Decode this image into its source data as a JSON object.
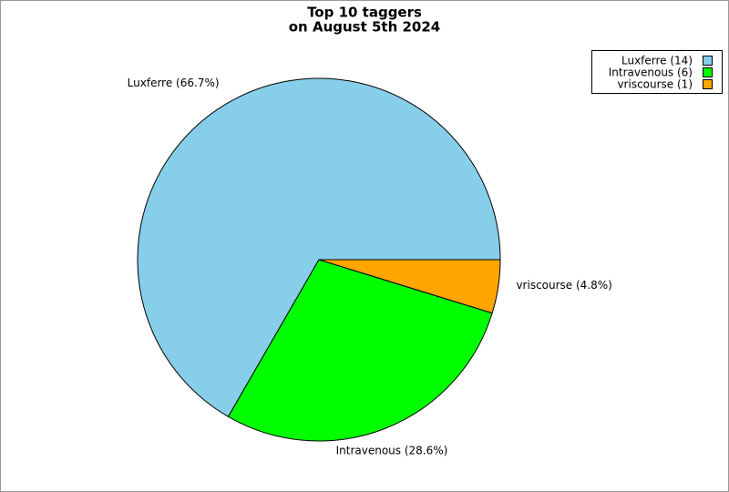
{
  "chart_data": {
    "type": "pie",
    "title": [
      "Top 10 taggers",
      "on August 5th 2024"
    ],
    "categories": [
      "Luxferre",
      "Intravenous",
      "vriscourse"
    ],
    "values": [
      14,
      6,
      1
    ],
    "value_labels": [
      "Luxferre (66.7%)",
      "Intravenous (28.6%)",
      "vriscourse (4.8%)"
    ],
    "legend_labels": [
      "Luxferre (14)",
      "Intravenous (6)",
      "vriscourse (1)"
    ],
    "colors": [
      "#87ceeb",
      "#00ff00",
      "#ffa500"
    ],
    "legend": "top-right"
  }
}
